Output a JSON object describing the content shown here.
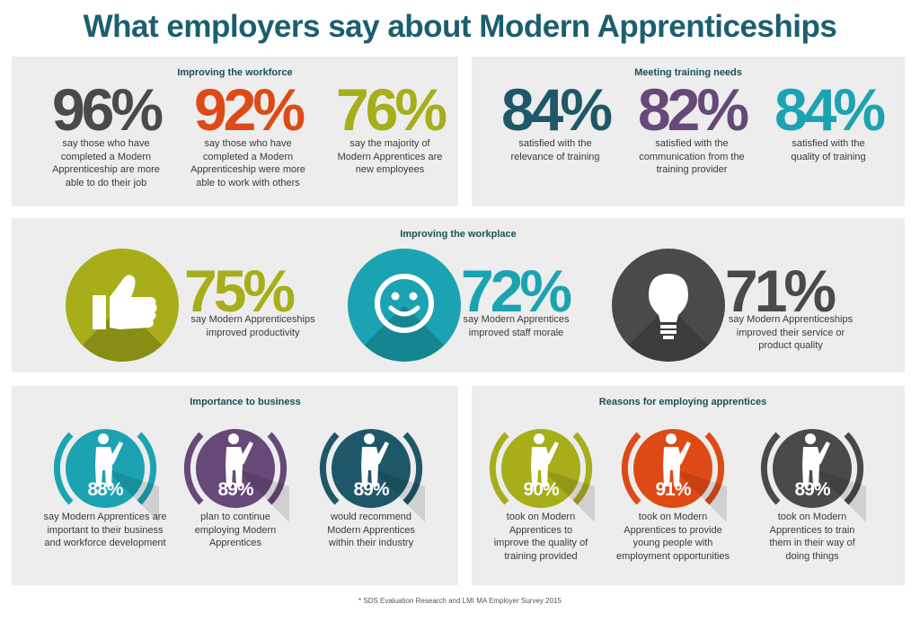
{
  "title": "What employers say about Modern Apprenticeships",
  "workforce": {
    "heading": "Improving the workforce",
    "stats": [
      {
        "value": "96%",
        "color": "#4a4a4a",
        "text": "say those who have completed a Modern Apprenticeship are more able to do their job"
      },
      {
        "value": "92%",
        "color": "#de4a16",
        "text": "say those who have completed a Modern Apprenticeship were more able to work with others"
      },
      {
        "value": "76%",
        "color": "#a7ae19",
        "text": "say the majority of Modern Apprentices are new employees"
      }
    ]
  },
  "training": {
    "heading": "Meeting training needs",
    "stats": [
      {
        "value": "84%",
        "color": "#1e5868",
        "text": "satisfied with the relevance of training"
      },
      {
        "value": "82%",
        "color": "#664879",
        "text": "satisfied with the communication from the training provider"
      },
      {
        "value": "84%",
        "color": "#1ba3b2",
        "text": "satisfied with the quality of training"
      }
    ]
  },
  "workplace": {
    "heading": "Improving the workplace",
    "stats": [
      {
        "value": "75%",
        "icon": "thumbs-up-icon",
        "color": "#a7ae19",
        "text": "say Modern Apprenticeships improved productivity"
      },
      {
        "value": "72%",
        "icon": "smiley-icon",
        "color": "#1ba3b2",
        "text": "say Modern Apprentices improved staff morale"
      },
      {
        "value": "71%",
        "icon": "lightbulb-icon",
        "color": "#4a4a4a",
        "text": "say Modern Apprenticeships improved their service or product quality"
      }
    ]
  },
  "importance": {
    "heading": "Importance to business",
    "stats": [
      {
        "value": "88%",
        "color": "#1ba3b2",
        "text": "say Modern Apprentices are important to their business and workforce development"
      },
      {
        "value": "89%",
        "color": "#664879",
        "text": "plan to continue employing Modern Apprentices"
      },
      {
        "value": "89%",
        "color": "#1e5868",
        "text": "would recommend Modern Apprentices within their industry"
      }
    ]
  },
  "reasons": {
    "heading": "Reasons for employing apprentices",
    "stats": [
      {
        "value": "90%",
        "color": "#a7ae19",
        "text": "took on Modern Apprentices to improve the quality of training provided"
      },
      {
        "value": "91%",
        "color": "#de4a16",
        "text": "took on Modern Apprentices to provide young people with employment opportunities"
      },
      {
        "value": "89%",
        "color": "#4a4a4a",
        "text": "took on Modern Apprentices to train them in their way of doing things"
      }
    ]
  },
  "footnote": "* SDS Evaluation Research and LMI MA Employer Survey 2015"
}
